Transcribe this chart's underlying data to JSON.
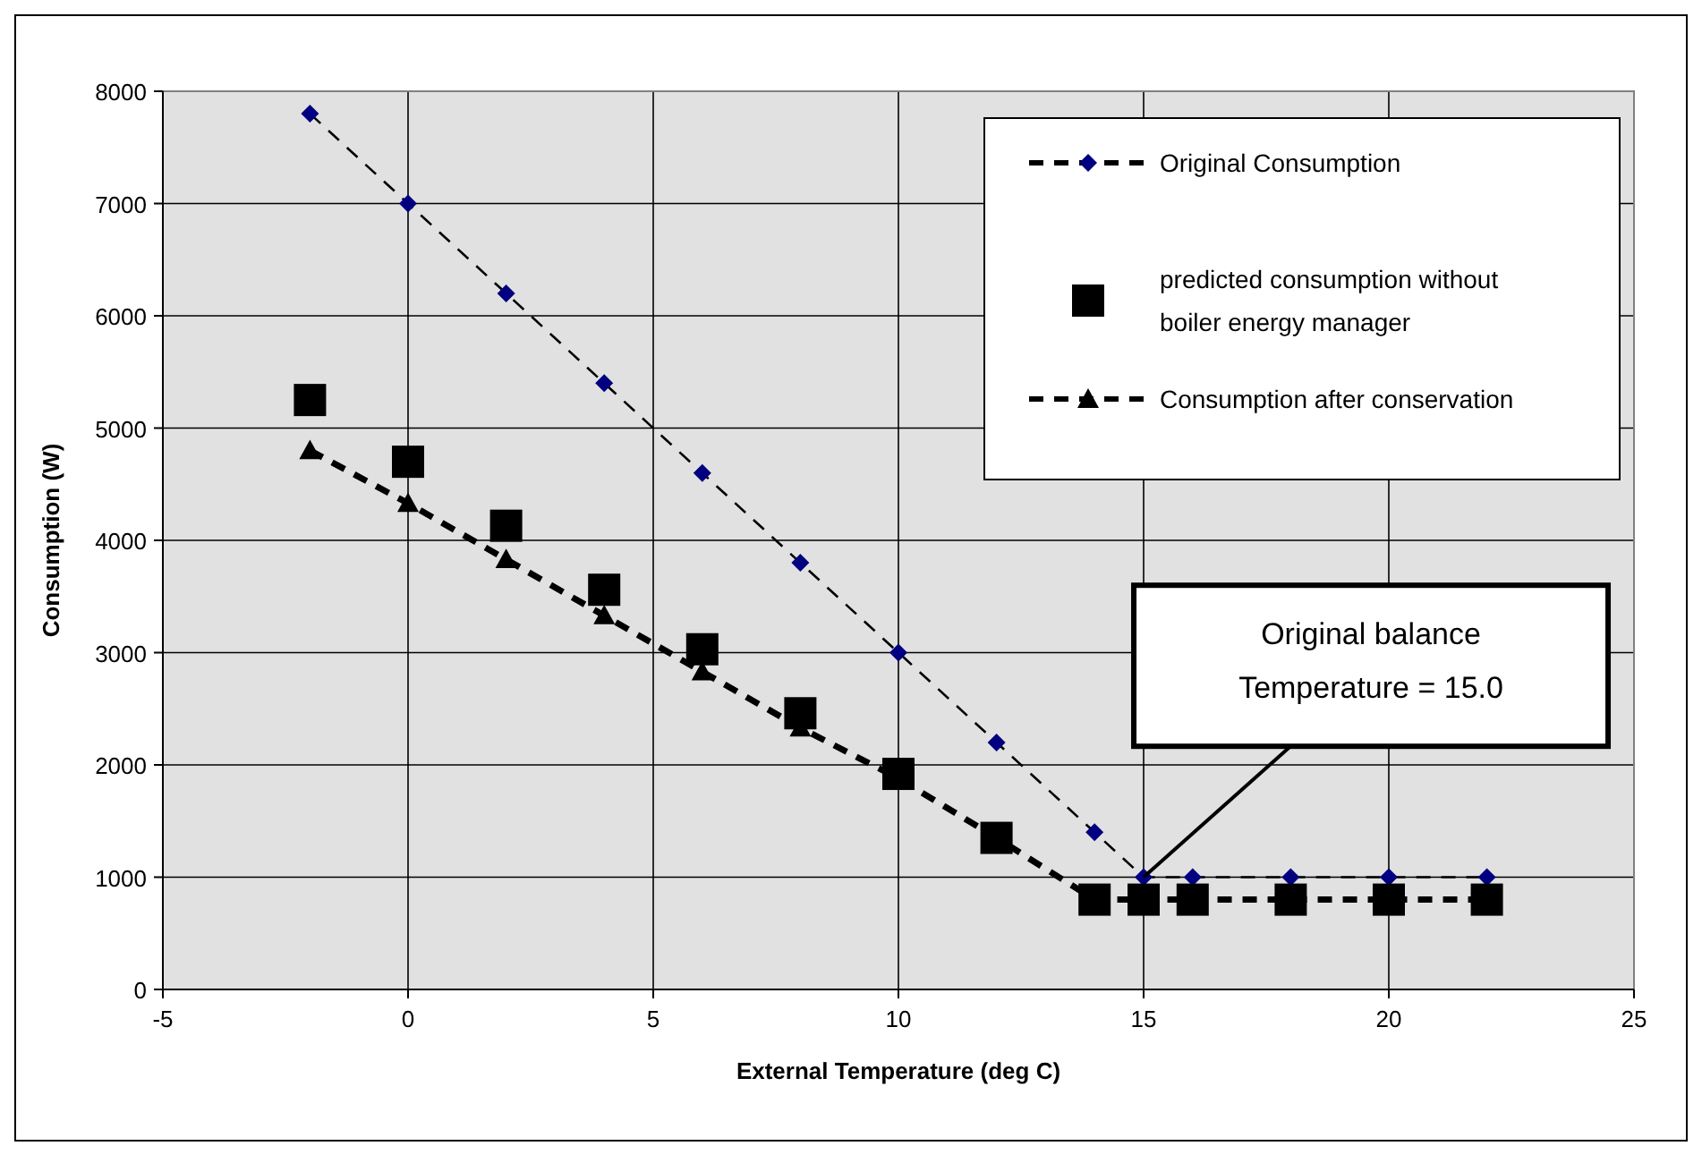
{
  "chart_data": {
    "type": "line",
    "xlabel": "External Temperature (deg C)",
    "ylabel": "Consumption (W)",
    "xlim": [
      -5,
      25
    ],
    "xticks": [
      -5,
      0,
      5,
      10,
      15,
      20,
      25
    ],
    "ylim": [
      0,
      8000
    ],
    "yticks": [
      0,
      1000,
      2000,
      3000,
      4000,
      5000,
      6000,
      7000,
      8000
    ],
    "grid": true,
    "legend": "top right",
    "annotations": [
      {
        "text": "Original balance\nTemperature = 15.0",
        "x": 15,
        "y": 1000
      }
    ],
    "series": [
      {
        "name": "Original Consumption",
        "color": "#000080",
        "marker": "diamond",
        "line_style": "dashed",
        "x": [
          -2,
          0,
          2,
          4,
          6,
          8,
          10,
          12,
          14,
          15,
          16,
          18,
          20,
          22
        ],
        "values": [
          7800,
          7000,
          6200,
          5400,
          4600,
          3800,
          3000,
          2200,
          1400,
          1000,
          1000,
          1000,
          1000,
          1000
        ]
      },
      {
        "name": "predicted consumption without boiler energy manager",
        "type": "scatter",
        "color": "#000000",
        "marker": "square",
        "x": [
          -2,
          0,
          2,
          4,
          6,
          8,
          10,
          12,
          14,
          15,
          16,
          18,
          20,
          22
        ],
        "values": [
          5250,
          4700,
          4130,
          3560,
          3030,
          2460,
          1920,
          1350,
          800,
          800,
          800,
          800,
          800,
          800
        ]
      },
      {
        "name": "Consumption after conservation",
        "color": "#000000",
        "marker": "triangle",
        "line_style": "dashed",
        "x": [
          -2,
          0,
          2,
          4,
          6,
          8,
          10,
          12,
          14,
          15,
          16,
          18,
          20,
          22
        ],
        "values": [
          4800,
          4330,
          3830,
          3330,
          2830,
          2330,
          1880,
          1350,
          800,
          800,
          800,
          800,
          800,
          800
        ]
      }
    ]
  }
}
